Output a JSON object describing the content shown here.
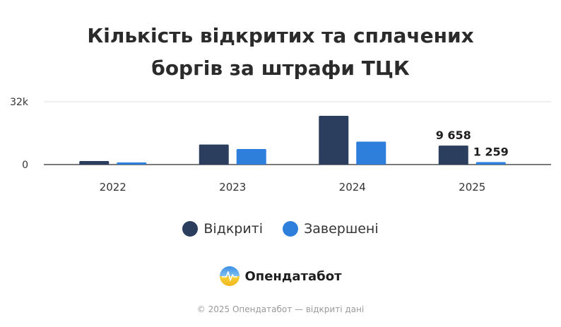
{
  "title_line1": "Кількість відкритих та сплачених",
  "title_line2": "боргів за штрафи ТЦК",
  "chart_data": {
    "type": "bar",
    "categories": [
      "2022",
      "2023",
      "2024",
      "2025"
    ],
    "series": [
      {
        "name": "Відкриті",
        "color": "#2c3e5e",
        "values": [
          1800,
          10200,
          24800,
          9658
        ]
      },
      {
        "name": "Завершені",
        "color": "#2e7fdc",
        "values": [
          1100,
          7900,
          11700,
          1259
        ]
      }
    ],
    "data_labels": [
      {
        "series": 0,
        "category": 3,
        "text": "9 658"
      },
      {
        "series": 1,
        "category": 3,
        "text": "1 259"
      }
    ],
    "y_ticks": [
      {
        "value": 0,
        "label": "0"
      },
      {
        "value": 32000,
        "label": "32k"
      }
    ],
    "ylim": [
      0,
      32000
    ],
    "grid": true,
    "legend_position": "bottom-center"
  },
  "logo": {
    "text": "Опендатабот",
    "icon": "opendatabot-logo-icon"
  },
  "footer": "© 2025 Опендатабот — відкриті дані"
}
